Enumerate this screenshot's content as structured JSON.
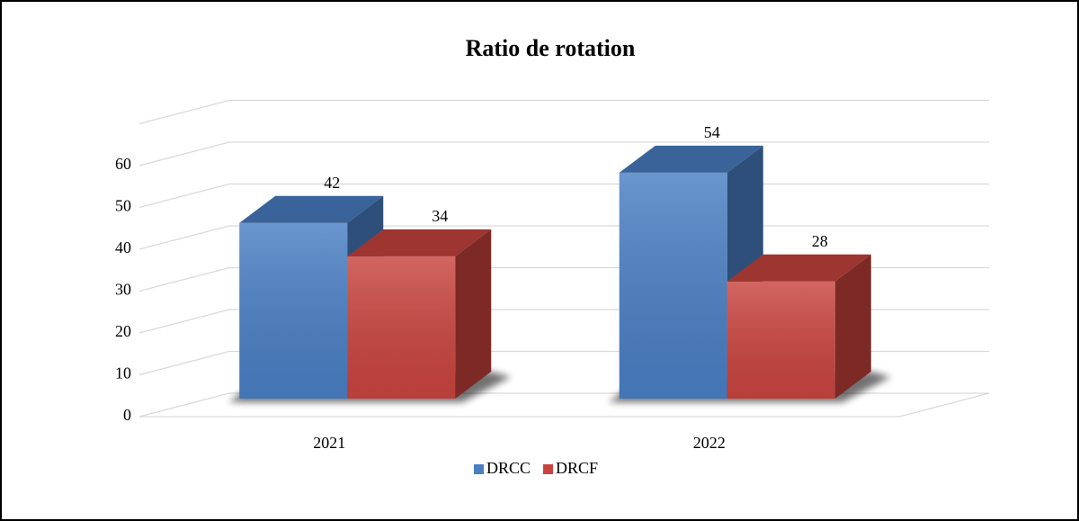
{
  "chart_data": {
    "type": "bar3d",
    "title": "Ratio de rotation",
    "categories": [
      "2021",
      "2022"
    ],
    "series": [
      {
        "name": "DRCC",
        "color": "#4a7fc4",
        "values": [
          42,
          54
        ]
      },
      {
        "name": "DRCF",
        "color": "#c9443f",
        "values": [
          34,
          28
        ]
      }
    ],
    "ylim": [
      0,
      70
    ],
    "yticks": [
      0,
      10,
      20,
      30,
      40,
      50,
      60
    ],
    "grid": true,
    "legend": "bottom"
  }
}
